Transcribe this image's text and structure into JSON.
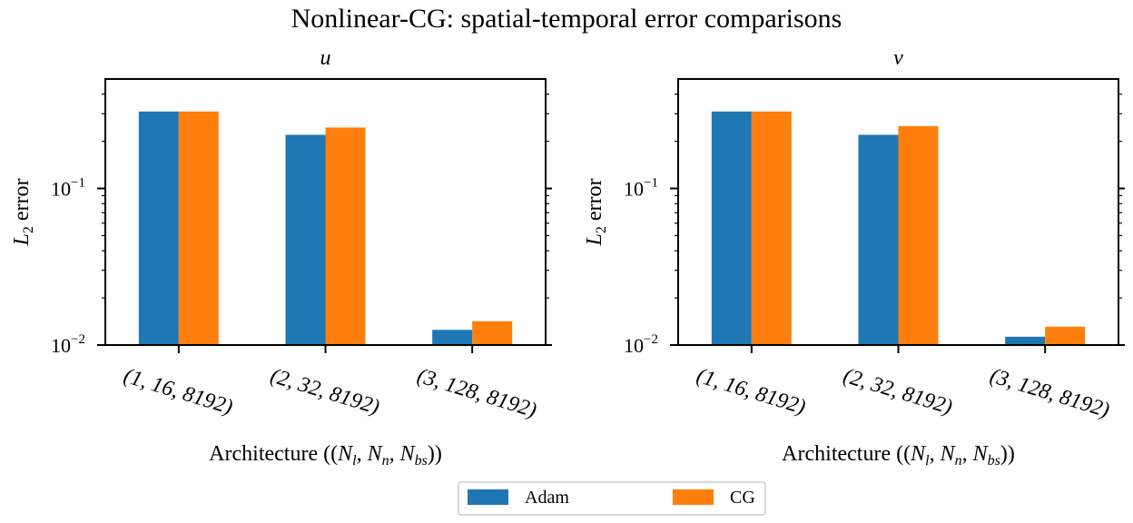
{
  "figure": {
    "title": "Nonlinear-CG: spatial-temporal error comparisons"
  },
  "colors": {
    "Adam": "#1f77b4",
    "CG": "#ff7f0e"
  },
  "legend": {
    "placement": "bottom-center",
    "entries": [
      "Adam",
      "CG"
    ]
  },
  "chart_data": [
    {
      "type": "bar",
      "title": "u",
      "xlabel": "Architecture ((N_l, N_n, N_bs))",
      "ylabel": "L_2 error",
      "yscale": "log",
      "ylim": [
        0.01,
        0.5
      ],
      "yticks": [
        {
          "value": 0.1,
          "label_base": "10",
          "label_exp": "−1"
        },
        {
          "value": 0.01,
          "label_base": "10",
          "label_exp": "−2"
        }
      ],
      "categories": [
        "(1, 16, 8192)",
        "(2, 32, 8192)",
        "(3, 128, 8192)"
      ],
      "series": [
        {
          "name": "Adam",
          "values": [
            0.31,
            0.22,
            0.0125
          ]
        },
        {
          "name": "CG",
          "values": [
            0.31,
            0.245,
            0.0142
          ]
        }
      ],
      "grid": false
    },
    {
      "type": "bar",
      "title": "v",
      "xlabel": "Architecture ((N_l, N_n, N_bs))",
      "ylabel": "L_2 error",
      "yscale": "log",
      "ylim": [
        0.01,
        0.5
      ],
      "yticks": [
        {
          "value": 0.1,
          "label_base": "10",
          "label_exp": "−1"
        },
        {
          "value": 0.01,
          "label_base": "10",
          "label_exp": "−2"
        }
      ],
      "categories": [
        "(1, 16, 8192)",
        "(2, 32, 8192)",
        "(3, 128, 8192)"
      ],
      "series": [
        {
          "name": "Adam",
          "values": [
            0.31,
            0.22,
            0.0113
          ]
        },
        {
          "name": "CG",
          "values": [
            0.31,
            0.25,
            0.0131
          ]
        }
      ],
      "grid": false
    }
  ]
}
